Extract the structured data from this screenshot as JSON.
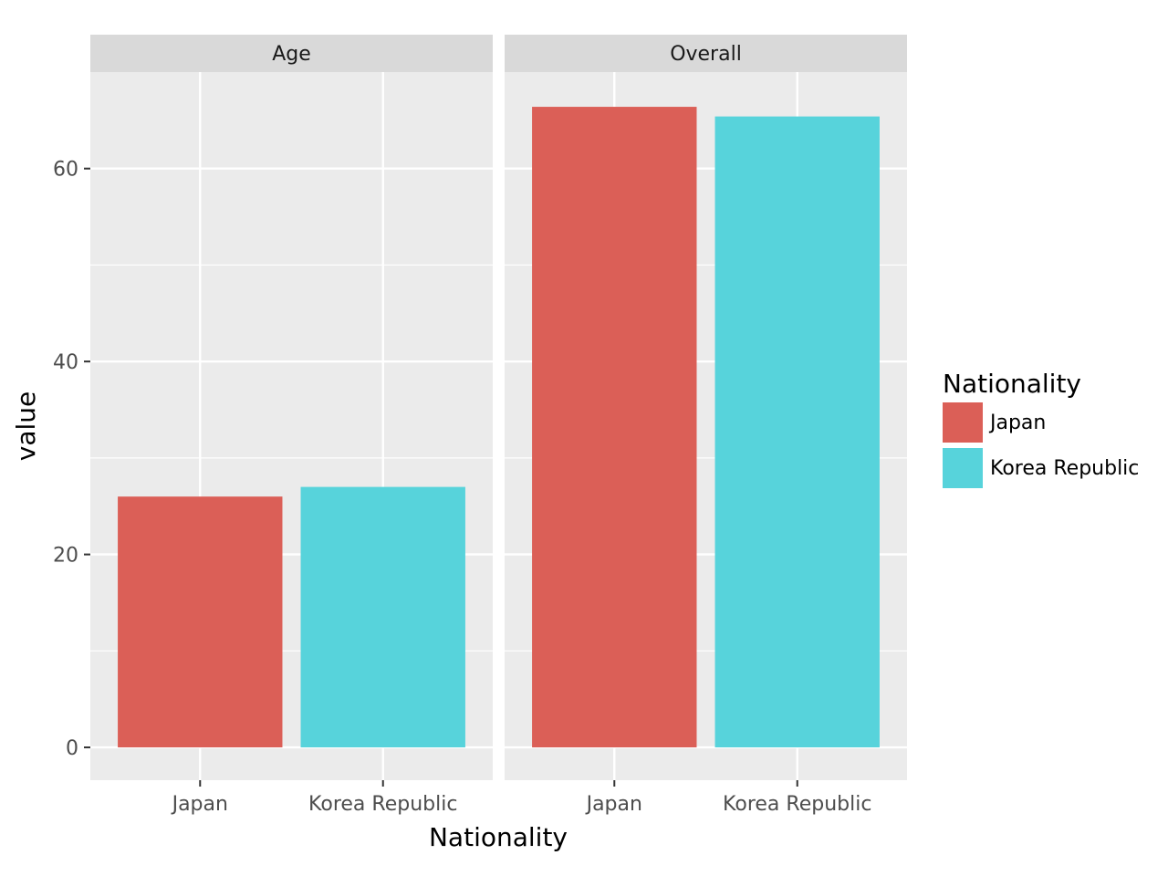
{
  "chart_data": {
    "type": "bar",
    "title": "",
    "xlabel": "Nationality",
    "ylabel": "value",
    "ylim": [
      -3.4,
      70.0
    ],
    "yticks": [
      0,
      20,
      40,
      60
    ],
    "grid": true,
    "legend": {
      "title": "Nationality",
      "placement": "right",
      "entries": [
        {
          "label": "Japan",
          "color": "#DB5F57"
        },
        {
          "label": "Korea Republic",
          "color": "#57D3DB"
        }
      ]
    },
    "categories": [
      "Japan",
      "Korea Republic"
    ],
    "facets": [
      {
        "label": "Age",
        "values": [
          26.0,
          27.0
        ]
      },
      {
        "label": "Overall",
        "values": [
          66.4,
          65.4
        ]
      }
    ]
  },
  "colors": {
    "panel_background": "#EBEBEB",
    "strip_background": "#D9D9D9",
    "grid_line": "#FFFFFF",
    "tick_text": "#4D4D4D"
  }
}
